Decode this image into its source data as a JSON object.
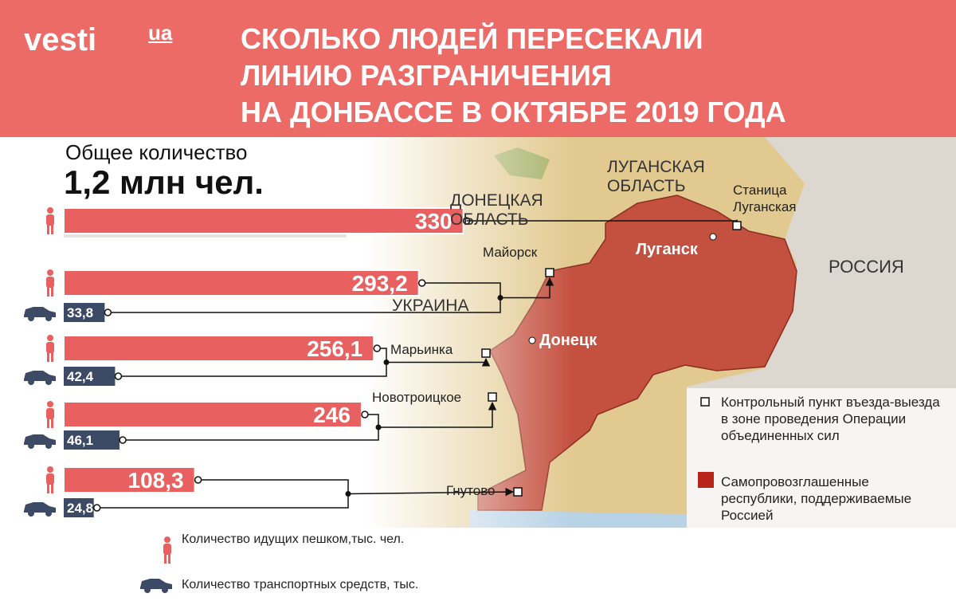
{
  "header": {
    "logo": "vesti",
    "logo_suffix": "ua",
    "title": [
      "СКОЛЬКО ЛЮДЕЙ ПЕРЕСЕКАЛИ",
      "ЛИНИЮ РАЗГРАНИЧЕНИЯ",
      "НА ДОНБАССЕ  В ОКТЯБРЕ 2019 ГОДА"
    ]
  },
  "total": {
    "label": "Общее количество",
    "value": "1,2 млн чел."
  },
  "map": {
    "regions": [
      "ЛУГАНСКАЯ ОБЛАСТЬ",
      "ДОНЕЦКАЯ ОБЛАСТЬ",
      "УКРАИНА",
      "РОССИЯ"
    ],
    "cities": [
      "Луганск",
      "Донецк"
    ],
    "legend": [
      "Контрольный пункт въезда-выезда в зоне проведения Операции объединенных сил",
      "Самопровозглашенные республики, поддерживаемые Россией"
    ]
  },
  "chart_data": {
    "type": "bar",
    "orientation": "horizontal",
    "categories": [
      "Станица Луганская",
      "Майорск",
      "Марьинка",
      "Новотроицкое",
      "Гнутово"
    ],
    "series": [
      {
        "name": "Количество идущих пешком,тыс. чел.",
        "color": "#e8605f",
        "values": [
          330,
          293.2,
          256.1,
          246,
          108.3
        ],
        "value_labels": [
          "330",
          "293,2",
          "256,1",
          "246",
          "108,3"
        ]
      },
      {
        "name": "Количество транспортных средств, тыс.",
        "color": "#3d4a66",
        "values": [
          null,
          33.8,
          42.4,
          46.1,
          24.8
        ],
        "value_labels": [
          null,
          "33,8",
          "42,4",
          "46,1",
          "24,8"
        ]
      }
    ]
  }
}
